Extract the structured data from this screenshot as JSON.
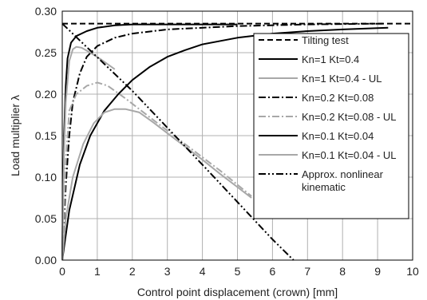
{
  "chart_data": {
    "type": "line",
    "title": "",
    "xlabel": "Control point displacement (crown) [mm]",
    "ylabel": "Load multiplier λ",
    "xlim": [
      0,
      10
    ],
    "ylim": [
      0,
      0.3
    ],
    "x_ticks": [
      "0",
      "1",
      "2",
      "3",
      "4",
      "5",
      "6",
      "7",
      "8",
      "9",
      "10"
    ],
    "y_ticks": [
      "0.00",
      "0.05",
      "0.10",
      "0.15",
      "0.20",
      "0.25",
      "0.30"
    ],
    "grid": "both",
    "legend_position": "right",
    "series": [
      {
        "name": "Tilting test",
        "dash": "dashed",
        "color": "#000000",
        "points": [
          [
            0,
            0.285
          ],
          [
            10,
            0.285
          ]
        ]
      },
      {
        "name": "Kn=1 Kt=0.4",
        "dash": "solid",
        "color": "#000000",
        "points": [
          [
            0,
            0
          ],
          [
            0.02,
            0.08
          ],
          [
            0.05,
            0.15
          ],
          [
            0.1,
            0.21
          ],
          [
            0.15,
            0.243
          ],
          [
            0.25,
            0.262
          ],
          [
            0.4,
            0.27
          ],
          [
            0.7,
            0.276
          ],
          [
            1,
            0.28
          ],
          [
            1.5,
            0.283
          ],
          [
            2,
            0.284
          ],
          [
            3,
            0.284
          ],
          [
            5,
            0.284
          ]
        ]
      },
      {
        "name": "Kn=1 Kt=0.4 - UL",
        "dash": "solid",
        "color": "#a8a8a8",
        "points": [
          [
            0,
            0
          ],
          [
            0.05,
            0.13
          ],
          [
            0.1,
            0.19
          ],
          [
            0.2,
            0.24
          ],
          [
            0.3,
            0.254
          ],
          [
            0.4,
            0.257
          ],
          [
            0.55,
            0.256
          ],
          [
            0.8,
            0.25
          ],
          [
            1.1,
            0.242
          ],
          [
            1.5,
            0.23
          ]
        ]
      },
      {
        "name": "Kn=0.2 Kt=0.08",
        "dash": "dashdot",
        "color": "#000000",
        "points": [
          [
            0,
            0
          ],
          [
            0.1,
            0.09
          ],
          [
            0.2,
            0.15
          ],
          [
            0.3,
            0.19
          ],
          [
            0.5,
            0.225
          ],
          [
            0.7,
            0.245
          ],
          [
            1,
            0.258
          ],
          [
            1.5,
            0.268
          ],
          [
            2,
            0.273
          ],
          [
            3,
            0.278
          ],
          [
            5,
            0.282
          ],
          [
            7,
            0.284
          ],
          [
            9.2,
            0.285
          ]
        ]
      },
      {
        "name": "Kn=0.2 Kt=0.08 - UL",
        "dash": "dashdot",
        "color": "#a8a8a8",
        "points": [
          [
            0,
            0
          ],
          [
            0.1,
            0.12
          ],
          [
            0.2,
            0.18
          ],
          [
            0.4,
            0.2
          ],
          [
            0.7,
            0.21
          ],
          [
            1,
            0.214
          ],
          [
            1.3,
            0.21
          ],
          [
            1.8,
            0.195
          ],
          [
            2.5,
            0.172
          ],
          [
            3.5,
            0.14
          ],
          [
            4.5,
            0.108
          ],
          [
            5.4,
            0.077
          ]
        ]
      },
      {
        "name": "Kn=0.1 Kt=0.04",
        "dash": "solid",
        "color": "#000000",
        "points": [
          [
            0,
            0
          ],
          [
            0.2,
            0.06
          ],
          [
            0.5,
            0.115
          ],
          [
            0.8,
            0.15
          ],
          [
            1.2,
            0.18
          ],
          [
            1.6,
            0.2
          ],
          [
            2,
            0.217
          ],
          [
            2.5,
            0.233
          ],
          [
            3,
            0.245
          ],
          [
            3.5,
            0.253
          ],
          [
            4,
            0.26
          ],
          [
            5,
            0.268
          ],
          [
            6,
            0.273
          ],
          [
            7,
            0.276
          ],
          [
            8,
            0.278
          ],
          [
            9.3,
            0.28
          ]
        ]
      },
      {
        "name": "Kn=0.1 Kt=0.04 - UL",
        "dash": "solid",
        "color": "#a8a8a8",
        "points": [
          [
            0,
            0
          ],
          [
            0.1,
            0.05
          ],
          [
            0.3,
            0.1
          ],
          [
            0.6,
            0.14
          ],
          [
            0.9,
            0.165
          ],
          [
            1.2,
            0.178
          ],
          [
            1.5,
            0.182
          ],
          [
            1.8,
            0.182
          ],
          [
            2.2,
            0.178
          ],
          [
            2.6,
            0.166
          ],
          [
            3,
            0.153
          ],
          [
            3.5,
            0.137
          ],
          [
            4,
            0.121
          ],
          [
            4.5,
            0.104
          ],
          [
            5,
            0.088
          ],
          [
            5.4,
            0.075
          ]
        ]
      },
      {
        "name": "Approx. nonlinear kinematic",
        "label_lines": [
          "Approx. nonlinear",
          "kinematic"
        ],
        "dash": "dashdotdot",
        "color": "#000000",
        "points": [
          [
            0,
            0.285
          ],
          [
            2,
            0.204
          ],
          [
            4,
            0.115
          ],
          [
            6,
            0.025
          ],
          [
            6.6,
            0
          ]
        ]
      }
    ]
  }
}
